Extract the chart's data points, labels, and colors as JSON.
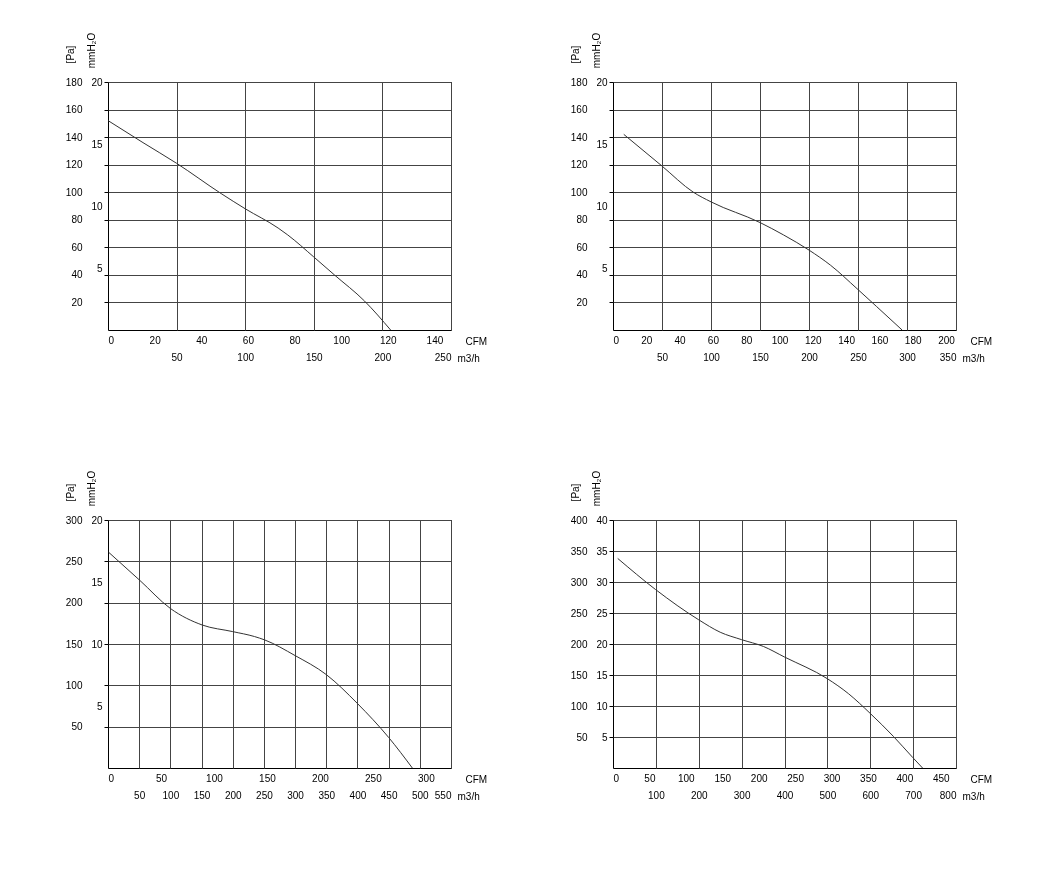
{
  "chart_data": [
    {
      "type": "line",
      "xlabel": "m3/h",
      "x2label": "CFM",
      "ylabel": "[Pa]",
      "y2label": "mmH₂O",
      "grid": true,
      "xlim": [
        0,
        250
      ],
      "xticks": [
        50,
        100,
        150,
        200,
        250
      ],
      "x2lim": [
        0,
        147.1
      ],
      "x2ticks": [
        0,
        20,
        40,
        60,
        80,
        100,
        120,
        140
      ],
      "ylim": [
        0,
        180
      ],
      "yticks": [
        20,
        40,
        60,
        80,
        100,
        120,
        140,
        160,
        180
      ],
      "y2lim": [
        0,
        20
      ],
      "y2ticks": [
        5,
        10,
        15,
        20
      ],
      "x": [
        0,
        25.5,
        50,
        82.5,
        100,
        124,
        131,
        150,
        165,
        187,
        206
      ],
      "series": [
        {
          "color": "#333333",
          "values": [
            152,
            136,
            121,
            99,
            88,
            74,
            69,
            53,
            40,
            21,
            0
          ]
        }
      ]
    },
    {
      "type": "line",
      "xlabel": "m3/h",
      "x2label": "CFM",
      "ylabel": "[Pa]",
      "y2label": "mmH₂O",
      "grid": true,
      "xlim": [
        0,
        350
      ],
      "xticks": [
        50,
        100,
        150,
        200,
        250,
        300,
        350
      ],
      "x2lim": [
        0,
        206
      ],
      "x2ticks": [
        0,
        20,
        40,
        60,
        80,
        100,
        120,
        140,
        160,
        180,
        200
      ],
      "ylim": [
        0,
        180
      ],
      "yticks": [
        20,
        40,
        60,
        80,
        100,
        120,
        140,
        160,
        180
      ],
      "y2lim": [
        0,
        20
      ],
      "y2ticks": [
        5,
        10,
        15,
        20
      ],
      "x": [
        11,
        50,
        82,
        100,
        150,
        174,
        200,
        222,
        249,
        269,
        295
      ],
      "series": [
        {
          "color": "#333333",
          "values": [
            142,
            119,
            100,
            93,
            78,
            69,
            58,
            47,
            30,
            17,
            0
          ]
        }
      ]
    },
    {
      "type": "line",
      "xlabel": "m3/h",
      "x2label": "CFM",
      "ylabel": "[Pa]",
      "y2label": "mmH₂O",
      "grid": true,
      "xlim": [
        0,
        550
      ],
      "xticks": [
        50,
        100,
        150,
        200,
        250,
        300,
        350,
        400,
        450,
        500,
        550
      ],
      "x2lim": [
        0,
        323.7
      ],
      "x2ticks": [
        0,
        50,
        100,
        150,
        200,
        250,
        300
      ],
      "ylim": [
        0,
        300
      ],
      "yticks": [
        50,
        100,
        150,
        200,
        250,
        300
      ],
      "y2lim": [
        0,
        20
      ],
      "y2ticks": [
        5,
        10,
        15,
        20
      ],
      "x": [
        1,
        51,
        100,
        151,
        200,
        235,
        251,
        300,
        350,
        400,
        450,
        488
      ],
      "series": [
        {
          "color": "#333333",
          "values": [
            261,
            227,
            193,
            173,
            165,
            159,
            155,
            136,
            113,
            78,
            37,
            0
          ]
        }
      ]
    },
    {
      "type": "line",
      "xlabel": "m3/h",
      "x2label": "CFM",
      "ylabel": "[Pa]",
      "y2label": "mmH₂O",
      "grid": true,
      "xlim": [
        0,
        800
      ],
      "xticks": [
        100,
        200,
        300,
        400,
        500,
        600,
        700,
        800
      ],
      "x2lim": [
        0,
        470.9
      ],
      "x2ticks": [
        0,
        50,
        100,
        150,
        200,
        250,
        300,
        350,
        400,
        450
      ],
      "ylim": [
        0,
        400
      ],
      "yticks": [
        50,
        100,
        150,
        200,
        250,
        300,
        350,
        400
      ],
      "y2lim": [
        0,
        40
      ],
      "y2ticks": [
        5,
        10,
        15,
        20,
        25,
        30,
        35,
        40
      ],
      "x": [
        11,
        99,
        200,
        250,
        300,
        351,
        400,
        500,
        549,
        600,
        654,
        699,
        722
      ],
      "series": [
        {
          "color": "#333333",
          "values": [
            338,
            288,
            239,
            219,
            207,
            196,
            179,
            144,
            120,
            88,
            51,
            17,
            0
          ]
        }
      ]
    }
  ]
}
